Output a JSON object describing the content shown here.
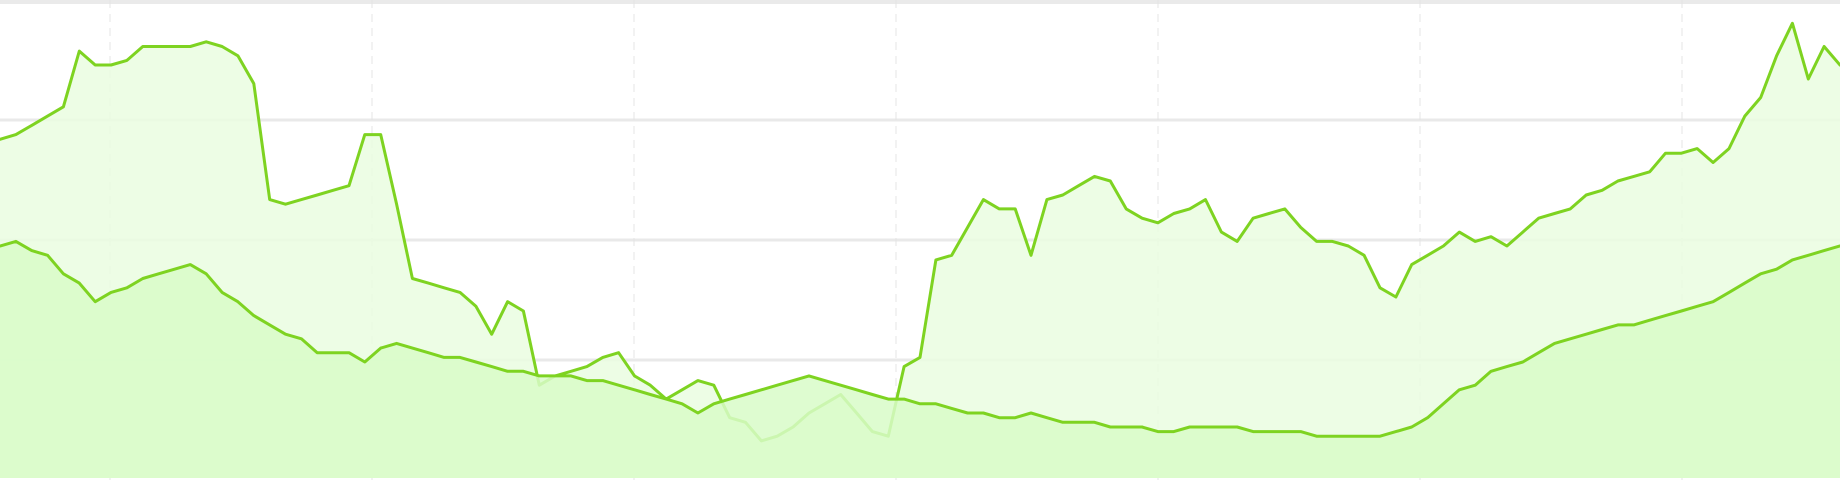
{
  "chart_data": {
    "type": "area",
    "x": [
      0,
      1,
      2,
      3,
      4,
      5,
      6,
      7,
      8,
      9,
      10,
      11,
      12,
      13,
      14,
      15,
      16,
      17,
      18,
      19,
      20,
      21,
      22,
      23,
      24,
      25,
      26,
      27,
      28,
      29,
      30,
      31,
      32,
      33,
      34,
      35,
      36,
      37,
      38,
      39,
      40,
      41,
      42,
      43,
      44,
      45,
      46,
      47,
      48,
      49,
      50,
      51,
      52,
      53,
      54,
      55,
      56,
      57,
      58,
      59,
      60,
      61,
      62,
      63,
      64,
      65,
      66,
      67,
      68,
      69,
      70,
      71,
      72,
      73,
      74,
      75,
      76,
      77,
      78,
      79,
      80,
      81,
      82,
      83,
      84,
      85,
      86,
      87,
      88,
      89,
      90,
      91,
      92,
      93,
      94,
      95,
      96,
      97,
      98,
      99,
      100,
      101,
      102,
      103,
      104,
      105,
      106,
      107,
      108,
      109,
      110,
      111,
      112,
      113,
      114,
      115,
      116
    ],
    "xlim": [
      0,
      116
    ],
    "ylim": [
      0,
      100
    ],
    "grid": true,
    "series": [
      {
        "color": "#7ed321",
        "fill": "#eafde0",
        "values": [
          73,
          74,
          76,
          78,
          80,
          92,
          89,
          89,
          90,
          93,
          93,
          93,
          93,
          94,
          93,
          91,
          85,
          60,
          59,
          60,
          61,
          62,
          63,
          74,
          74,
          59,
          43,
          42,
          41,
          40,
          37,
          31,
          38,
          36,
          20,
          22,
          23,
          24,
          26,
          27,
          22,
          20,
          17,
          19,
          21,
          20,
          13,
          12,
          8,
          9,
          11,
          14,
          16,
          18,
          14,
          10,
          9,
          24,
          26,
          47,
          48,
          54,
          60,
          58,
          58,
          48,
          60,
          61,
          63,
          65,
          64,
          58,
          56,
          55,
          57,
          58,
          60,
          53,
          51,
          56,
          57,
          58,
          54,
          51,
          51,
          50,
          48,
          41,
          39,
          46,
          48,
          50,
          53,
          51,
          52,
          50,
          53,
          56,
          57,
          58,
          61,
          62,
          64,
          65,
          66,
          70,
          70,
          71,
          68,
          71,
          78,
          82,
          91,
          98,
          86,
          93,
          89
        ]
      },
      {
        "color": "#7ed321",
        "fill": "#d8fbc8",
        "values": [
          50,
          51,
          49,
          48,
          44,
          42,
          38,
          40,
          41,
          43,
          44,
          45,
          46,
          44,
          40,
          38,
          35,
          33,
          31,
          30,
          27,
          27,
          27,
          25,
          28,
          29,
          28,
          27,
          26,
          26,
          25,
          24,
          23,
          23,
          22,
          22,
          22,
          21,
          21,
          20,
          19,
          18,
          17,
          16,
          14,
          16,
          17,
          18,
          19,
          20,
          21,
          22,
          21,
          20,
          19,
          18,
          17,
          17,
          16,
          16,
          15,
          14,
          14,
          13,
          13,
          14,
          13,
          12,
          12,
          12,
          11,
          11,
          11,
          10,
          10,
          11,
          11,
          11,
          11,
          10,
          10,
          10,
          10,
          9,
          9,
          9,
          9,
          9,
          10,
          11,
          13,
          16,
          19,
          20,
          23,
          24,
          25,
          27,
          29,
          30,
          31,
          32,
          33,
          33,
          34,
          35,
          36,
          37,
          38,
          40,
          42,
          44,
          45,
          47,
          48,
          49,
          50
        ]
      }
    ]
  }
}
